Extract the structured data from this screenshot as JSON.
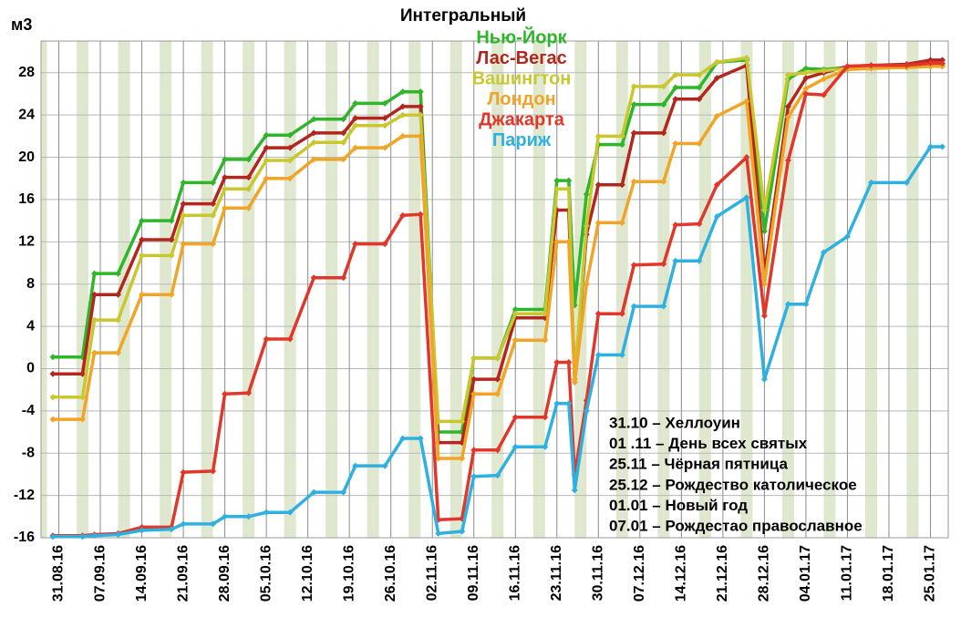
{
  "chart_data": {
    "type": "line",
    "title": "Интегральный",
    "y_label": "м3",
    "x": [
      "2016-08-30",
      "2016-09-04",
      "2016-09-06",
      "2016-09-10",
      "2016-09-14",
      "2016-09-19",
      "2016-09-21",
      "2016-09-26",
      "2016-09-28",
      "2016-10-02",
      "2016-10-05",
      "2016-10-09",
      "2016-10-13",
      "2016-10-18",
      "2016-10-20",
      "2016-10-25",
      "2016-10-28",
      "2016-10-31",
      "2016-11-03",
      "2016-11-07",
      "2016-11-09",
      "2016-11-13",
      "2016-11-16",
      "2016-11-21",
      "2016-11-23",
      "2016-11-25",
      "2016-11-26",
      "2016-11-28",
      "2016-11-30",
      "2016-12-04",
      "2016-12-06",
      "2016-12-11",
      "2016-12-13",
      "2016-12-17",
      "2016-12-20",
      "2016-12-25",
      "2016-12-28",
      "2017-01-01",
      "2017-01-04",
      "2017-01-07",
      "2017-01-11",
      "2017-01-15",
      "2017-01-21",
      "2017-01-25",
      "2017-01-27"
    ],
    "series": [
      {
        "name": "Нью-Йорк",
        "color": "#2fb52a",
        "values": [
          1.1,
          1.1,
          9,
          9,
          14,
          14,
          17.6,
          17.6,
          19.8,
          19.8,
          22.1,
          22.1,
          23.6,
          23.6,
          25.1,
          25.1,
          26.2,
          26.2,
          -6,
          -6,
          1,
          1,
          5.6,
          5.6,
          17.8,
          17.8,
          6,
          16.5,
          21.2,
          21.2,
          25,
          25,
          26.6,
          26.6,
          29,
          29.2,
          13,
          27.4,
          28.4,
          28.3,
          28.5,
          28.6,
          28.7,
          28.8,
          28.8
        ]
      },
      {
        "name": "Лас-Вегас",
        "color": "#b3261e",
        "values": [
          -0.5,
          -0.5,
          7,
          7,
          12.2,
          12.2,
          15.6,
          15.6,
          18.1,
          18.1,
          20.9,
          20.9,
          22.3,
          22.3,
          23.7,
          23.7,
          24.8,
          24.8,
          -7,
          -7,
          -1,
          -1,
          4.8,
          4.8,
          15,
          15,
          -1,
          12.7,
          17.4,
          17.4,
          22.3,
          22.3,
          25.5,
          25.5,
          27.5,
          28.7,
          9,
          24.8,
          27.5,
          28,
          28.6,
          28.7,
          28.8,
          29.2,
          29.2
        ]
      },
      {
        "name": "Вашингтон",
        "color": "#c9c72e",
        "values": [
          -2.7,
          -2.7,
          4.6,
          4.6,
          10.7,
          10.7,
          14.5,
          14.5,
          17,
          17,
          19.7,
          19.7,
          21.4,
          21.4,
          23,
          23,
          24,
          24,
          -5,
          -5,
          1,
          1,
          5.2,
          5.2,
          17,
          17,
          -1,
          13.5,
          22,
          22,
          26.7,
          26.7,
          27.8,
          27.8,
          29,
          29.4,
          15,
          27.8,
          28,
          28.2,
          28.4,
          28.5,
          28.5,
          28.6,
          28.6
        ]
      },
      {
        "name": "Лондон",
        "color": "#f0a526",
        "values": [
          -4.8,
          -4.8,
          1.5,
          1.5,
          7,
          7,
          11.8,
          11.8,
          15.2,
          15.2,
          18,
          18,
          19.8,
          19.8,
          20.9,
          20.9,
          22,
          22,
          -8.5,
          -8.5,
          -2.4,
          -2.4,
          2.7,
          2.7,
          12,
          12,
          -1.3,
          8,
          13.8,
          13.8,
          17.7,
          17.7,
          21.3,
          21.3,
          23.9,
          25.3,
          8,
          23.8,
          26.5,
          27.4,
          28.3,
          28.4,
          28.5,
          28.6,
          28.6
        ]
      },
      {
        "name": "Джакарта",
        "color": "#e0372a",
        "values": [
          -15.8,
          -15.8,
          -15.7,
          -15.6,
          -15,
          -15,
          -9.8,
          -9.7,
          -2.4,
          -2.3,
          2.8,
          2.8,
          8.6,
          8.6,
          11.8,
          11.8,
          14.5,
          14.6,
          -14.3,
          -14.2,
          -7.7,
          -7.7,
          -4.6,
          -4.6,
          0.6,
          0.6,
          -10.1,
          -3,
          5.2,
          5.2,
          9.8,
          9.9,
          13.6,
          13.7,
          17.4,
          20,
          5,
          19.7,
          26,
          25.9,
          28.6,
          28.7,
          28.7,
          28.9,
          28.9
        ]
      },
      {
        "name": "Париж",
        "color": "#2eb1e0",
        "values": [
          -15.9,
          -15.9,
          -15.8,
          -15.7,
          -15.3,
          -15.2,
          -14.7,
          -14.7,
          -14,
          -14,
          -13.6,
          -13.6,
          -11.7,
          -11.7,
          -9.2,
          -9.2,
          -6.6,
          -6.6,
          -15.6,
          -15.4,
          -10.2,
          -10.1,
          -7.4,
          -7.4,
          -3.3,
          -3.3,
          -11.5,
          -4,
          1.3,
          1.3,
          5.9,
          5.9,
          10.2,
          10.2,
          14.4,
          16.2,
          -1,
          6.1,
          6.1,
          11,
          12.5,
          17.6,
          17.6,
          21,
          21
        ]
      }
    ],
    "xlim": [
      "2016-08-28",
      "2017-01-28"
    ],
    "xticks": [
      {
        "value": "2016-08-31",
        "label": "31.08.16"
      },
      {
        "value": "2016-09-07",
        "label": "07.09.16"
      },
      {
        "value": "2016-09-14",
        "label": "14.09.16"
      },
      {
        "value": "2016-09-21",
        "label": "21.09.16"
      },
      {
        "value": "2016-09-28",
        "label": "28.09.16"
      },
      {
        "value": "2016-10-05",
        "label": "05.10.16"
      },
      {
        "value": "2016-10-12",
        "label": "12.10.16"
      },
      {
        "value": "2016-10-19",
        "label": "19.10.16"
      },
      {
        "value": "2016-10-26",
        "label": "26.10.16"
      },
      {
        "value": "2016-11-02",
        "label": "02.11.16"
      },
      {
        "value": "2016-11-09",
        "label": "09.11.16"
      },
      {
        "value": "2016-11-16",
        "label": "16.11.16"
      },
      {
        "value": "2016-11-23",
        "label": "23.11.16"
      },
      {
        "value": "2016-11-30",
        "label": "30.11.16"
      },
      {
        "value": "2016-12-07",
        "label": "07.12.16"
      },
      {
        "value": "2016-12-14",
        "label": "14.12.16"
      },
      {
        "value": "2016-12-21",
        "label": "21.12.16"
      },
      {
        "value": "2016-12-28",
        "label": "28.12.16"
      },
      {
        "value": "2017-01-04",
        "label": "04.01.17"
      },
      {
        "value": "2017-01-11",
        "label": "11.01.17"
      },
      {
        "value": "2017-01-18",
        "label": "18.01.17"
      },
      {
        "value": "2017-01-25",
        "label": "25.01.17"
      }
    ],
    "ylim": [
      -16,
      31
    ],
    "yticks": [
      -16,
      -12,
      -8,
      -4,
      0,
      4,
      8,
      12,
      16,
      20,
      24,
      28
    ],
    "grid": true,
    "weekend_shading": true,
    "annotations": [
      "31.10 – Хеллоуин",
      "01 .11 – День всех святых",
      "25.11 – Чёрная пятница",
      "25.12 – Рождество католическое",
      "01.01 – Новый год",
      "07.01 – Рождестао православное"
    ]
  }
}
